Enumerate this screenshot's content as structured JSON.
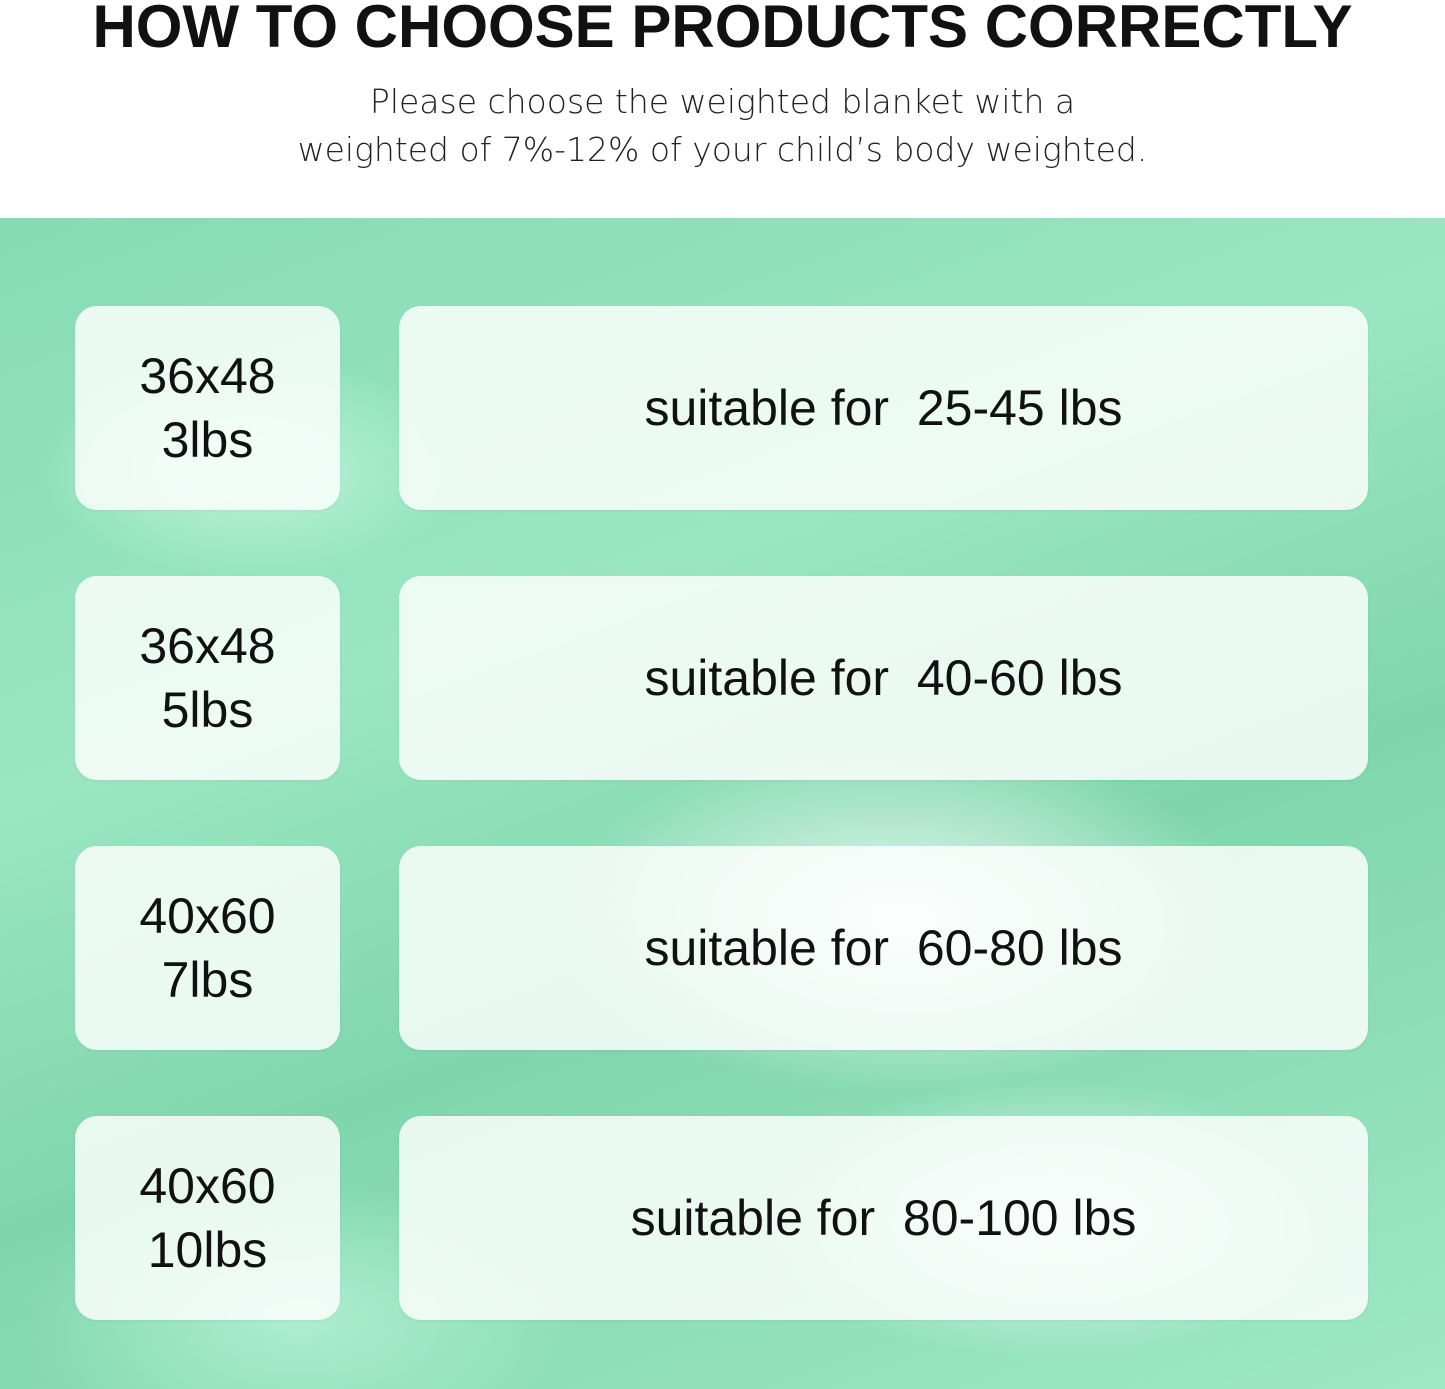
{
  "header": {
    "title": "HOW TO CHOOSE PRODUCTS CORRECTLY",
    "subtitle_line1": "Please choose the weighted blanket with a",
    "subtitle_line2": "weighted of 7%-12% of your child’s body weighted."
  },
  "rows": [
    {
      "size": "36x48",
      "weight": "3lbs",
      "suitable": "suitable for  25-45 lbs"
    },
    {
      "size": "36x48",
      "weight": "5lbs",
      "suitable": "suitable for  40-60 lbs"
    },
    {
      "size": "40x60",
      "weight": "7lbs",
      "suitable": "suitable for  60-80 lbs"
    },
    {
      "size": "40x60",
      "weight": "10lbs",
      "suitable": "suitable for  80-100 lbs"
    }
  ],
  "colors": {
    "background": "#8fdfb9",
    "card": "#ffffff",
    "text": "#111111"
  }
}
